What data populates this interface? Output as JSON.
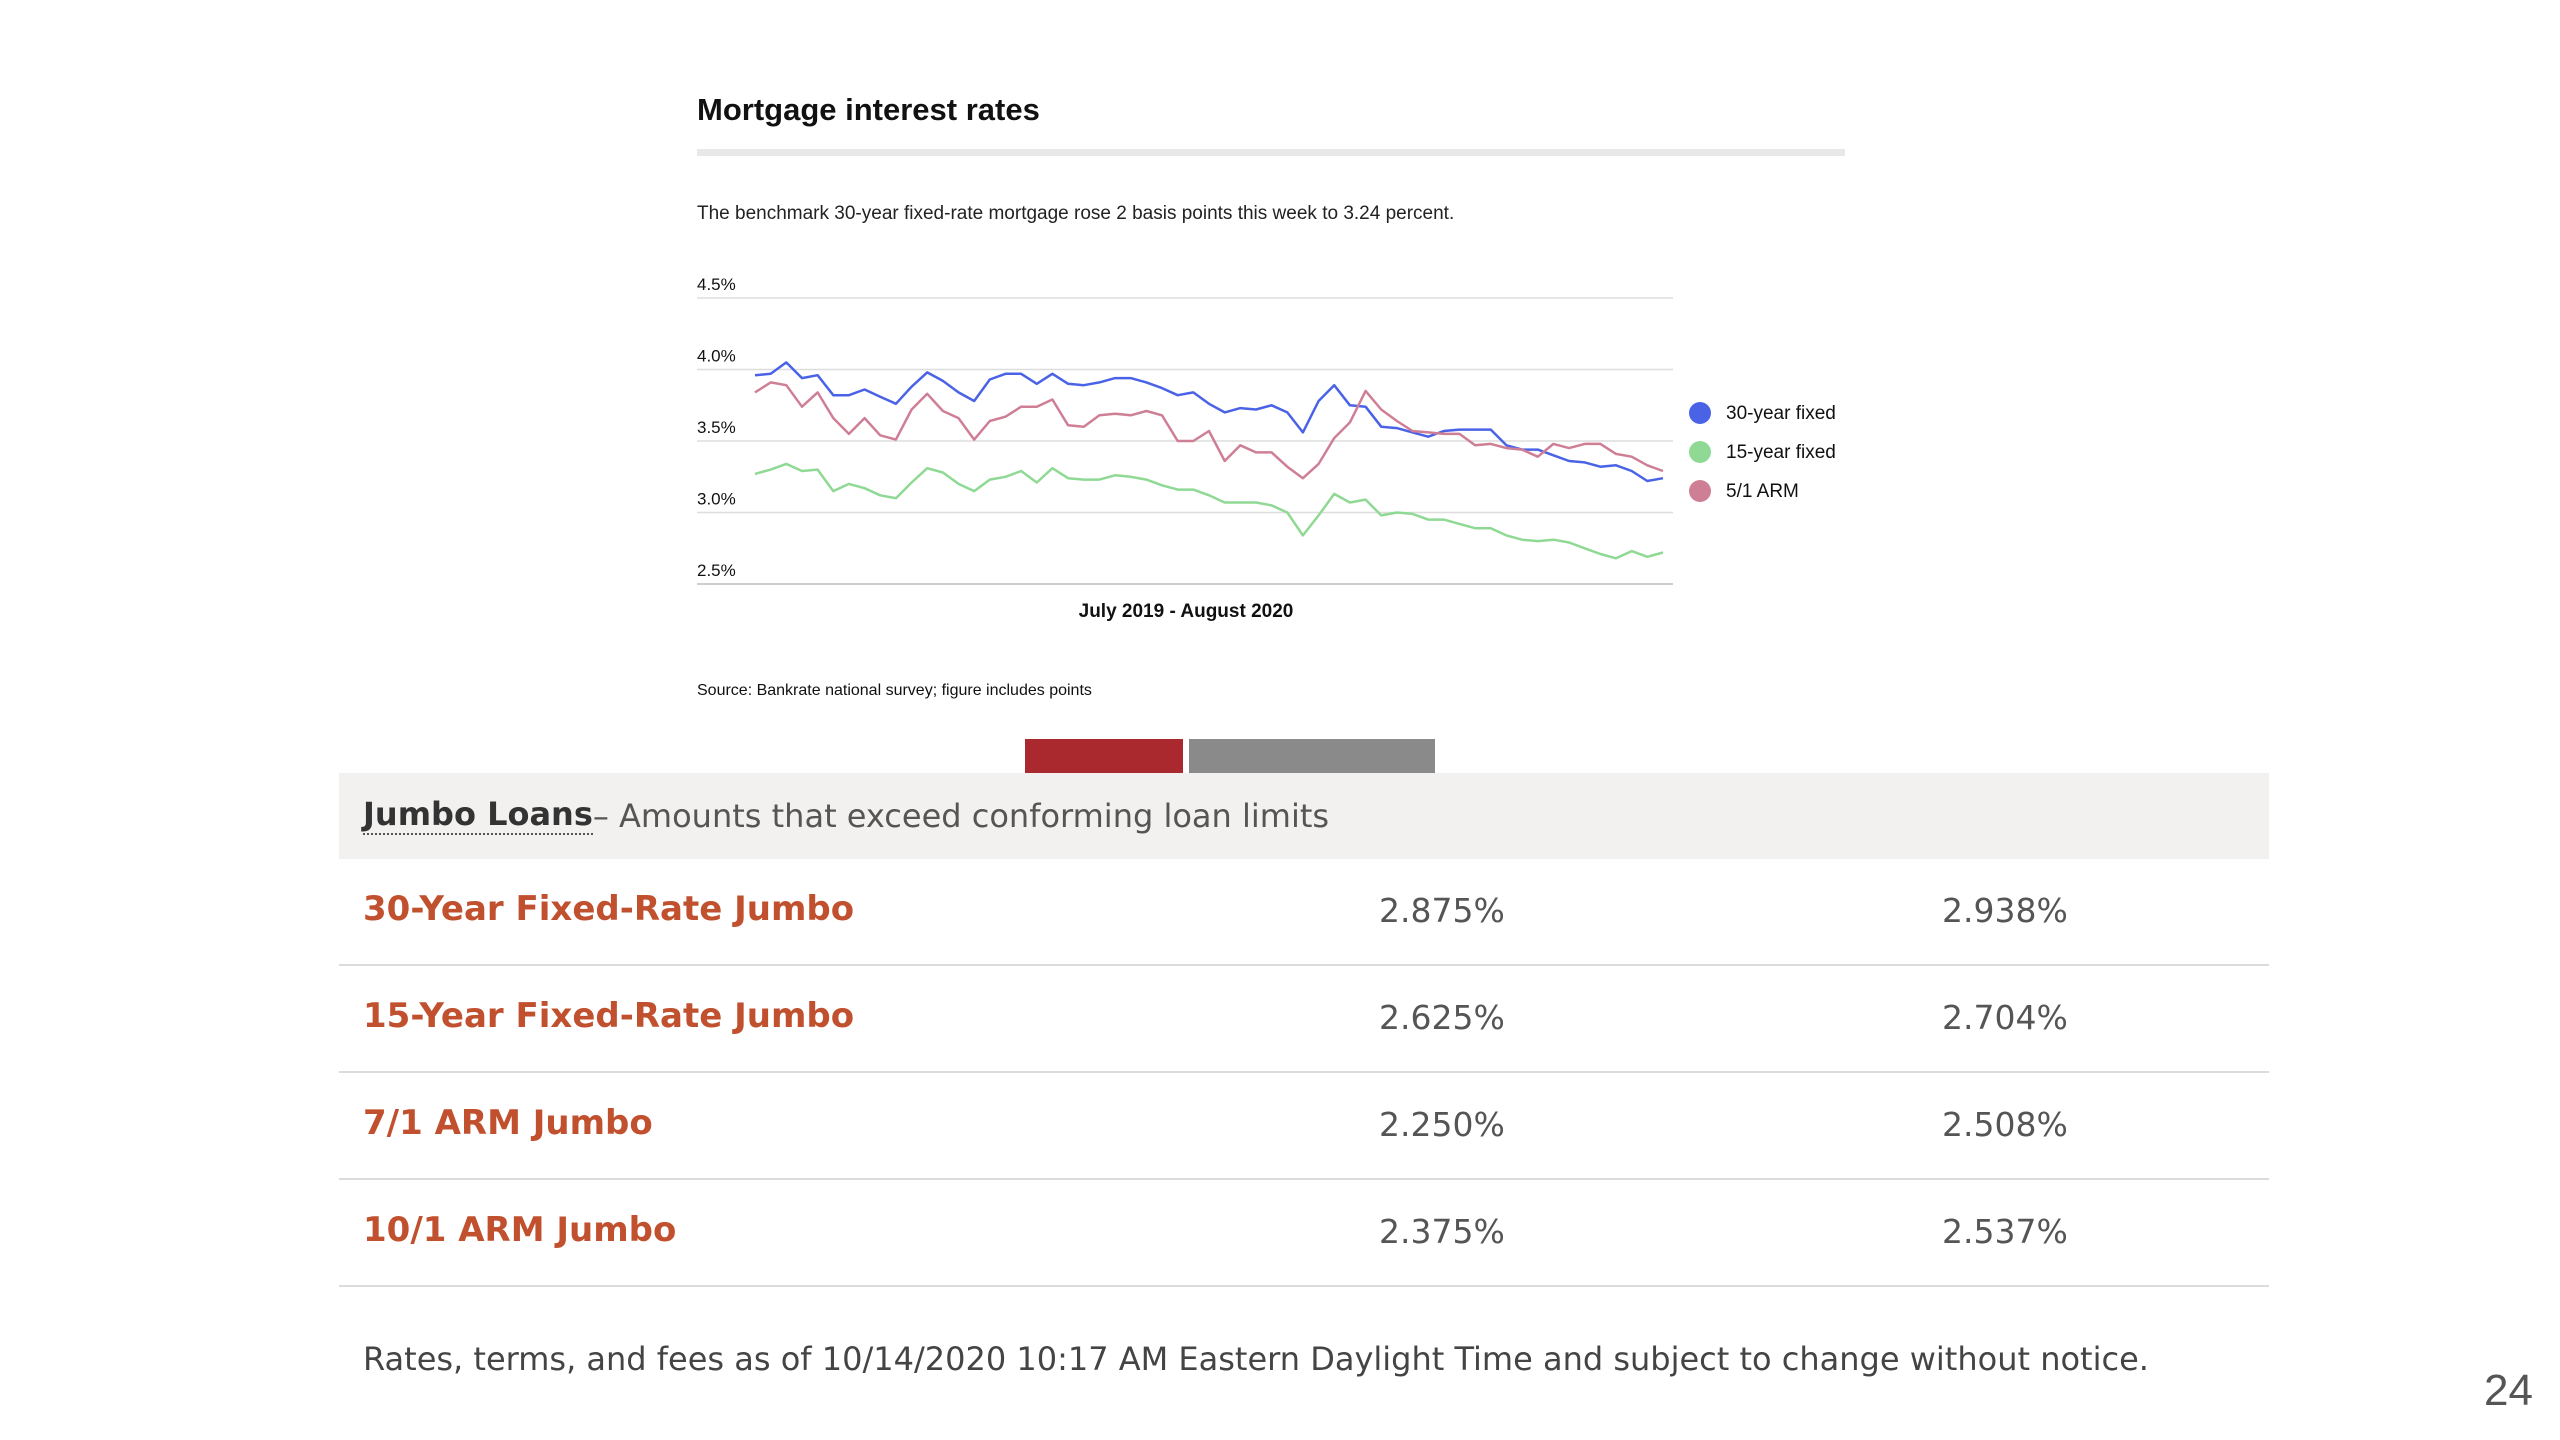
{
  "chart_data": {
    "type": "line",
    "title": "Mortgage interest rates",
    "subtitle": "The benchmark 30-year fixed-rate mortgage rose 2 basis points this week to 3.24 percent.",
    "xlabel": "July 2019 - August 2020",
    "ylabel": "",
    "ylim": [
      2.5,
      4.5
    ],
    "yticks": [
      {
        "value": 4.5,
        "label": "4.5%"
      },
      {
        "value": 4.0,
        "label": "4.0%"
      },
      {
        "value": 3.5,
        "label": "3.5%"
      },
      {
        "value": 3.0,
        "label": "3.0%"
      },
      {
        "value": 2.5,
        "label": "2.5%"
      }
    ],
    "grid": true,
    "legend": "right",
    "source": "Source: Bankrate national survey; figure includes points",
    "series": [
      {
        "name": "30-year fixed",
        "color": "#4a63e6",
        "values": [
          3.96,
          3.97,
          4.05,
          3.94,
          3.96,
          3.82,
          3.82,
          3.86,
          3.81,
          3.76,
          3.88,
          3.98,
          3.92,
          3.84,
          3.78,
          3.93,
          3.97,
          3.97,
          3.9,
          3.97,
          3.9,
          3.89,
          3.91,
          3.94,
          3.94,
          3.91,
          3.87,
          3.82,
          3.84,
          3.76,
          3.7,
          3.73,
          3.72,
          3.75,
          3.7,
          3.56,
          3.78,
          3.89,
          3.75,
          3.74,
          3.6,
          3.59,
          3.56,
          3.53,
          3.57,
          3.58,
          3.58,
          3.58,
          3.47,
          3.44,
          3.44,
          3.4,
          3.36,
          3.35,
          3.32,
          3.33,
          3.29,
          3.22,
          3.24
        ]
      },
      {
        "name": "15-year fixed",
        "color": "#8fd994",
        "values": [
          3.27,
          3.3,
          3.34,
          3.29,
          3.3,
          3.15,
          3.2,
          3.17,
          3.12,
          3.1,
          3.21,
          3.31,
          3.28,
          3.2,
          3.15,
          3.23,
          3.25,
          3.29,
          3.21,
          3.31,
          3.24,
          3.23,
          3.23,
          3.26,
          3.25,
          3.23,
          3.19,
          3.16,
          3.16,
          3.12,
          3.07,
          3.07,
          3.07,
          3.05,
          3.0,
          2.84,
          2.98,
          3.13,
          3.07,
          3.09,
          2.98,
          3.0,
          2.99,
          2.95,
          2.95,
          2.92,
          2.89,
          2.89,
          2.84,
          2.81,
          2.8,
          2.81,
          2.79,
          2.75,
          2.71,
          2.68,
          2.73,
          2.69,
          2.72
        ]
      },
      {
        "name": "5/1 ARM",
        "color": "#cf7f95",
        "values": [
          3.84,
          3.91,
          3.89,
          3.74,
          3.84,
          3.66,
          3.55,
          3.66,
          3.54,
          3.51,
          3.72,
          3.83,
          3.71,
          3.66,
          3.51,
          3.64,
          3.67,
          3.74,
          3.74,
          3.79,
          3.61,
          3.6,
          3.68,
          3.69,
          3.68,
          3.71,
          3.68,
          3.5,
          3.5,
          3.57,
          3.36,
          3.47,
          3.42,
          3.42,
          3.32,
          3.24,
          3.34,
          3.52,
          3.63,
          3.85,
          3.72,
          3.64,
          3.57,
          3.56,
          3.55,
          3.55,
          3.47,
          3.48,
          3.45,
          3.44,
          3.39,
          3.48,
          3.45,
          3.48,
          3.48,
          3.41,
          3.39,
          3.33,
          3.29
        ]
      }
    ]
  },
  "table": {
    "header_title": "Jumbo Loans",
    "header_sub": "– Amounts that exceed conforming loan limits",
    "rows": [
      {
        "name": "30-Year Fixed-Rate Jumbo",
        "rate": "2.875%",
        "apr": "2.938%"
      },
      {
        "name": "15-Year Fixed-Rate Jumbo",
        "rate": "2.625%",
        "apr": "2.704%"
      },
      {
        "name": "7/1 ARM Jumbo",
        "rate": "2.250%",
        "apr": "2.508%"
      },
      {
        "name": "10/1 ARM Jumbo",
        "rate": "2.375%",
        "apr": "2.537%"
      }
    ],
    "footnote": "Rates, terms, and fees as of 10/14/2020 10:17 AM Eastern Daylight Time and subject to change without notice."
  },
  "tab_colors": {
    "active": "#a9292f",
    "inactive": "#8a8a8a"
  },
  "page_number": "24"
}
